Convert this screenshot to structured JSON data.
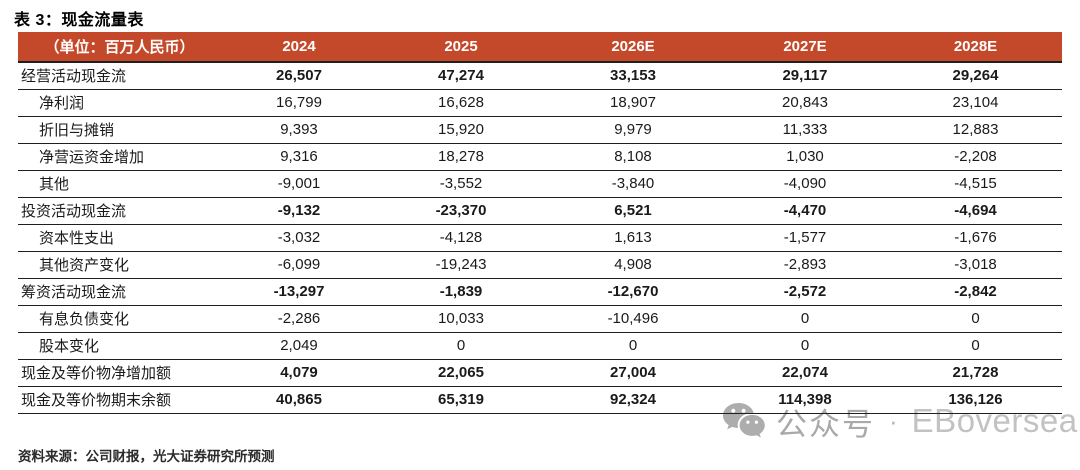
{
  "title": "表 3：现金流量表",
  "source_note": "资料来源：公司财报，光大证券研究所预测",
  "colors": {
    "header_bg": "#c4492b",
    "header_text": "#ffffff",
    "row_line": "#1f1f1f",
    "watermark_gray": "#b5b5b5"
  },
  "watermark": {
    "icon": "wechat-icon",
    "text": "公众号",
    "separator": "·",
    "brand": "EBoversea"
  },
  "table": {
    "unit_label": "（单位：百万人民币）",
    "columns": [
      "2024",
      "2025",
      "2026E",
      "2027E",
      "2028E"
    ],
    "rows": [
      {
        "label": "经营活动现金流",
        "indent": false,
        "bold": true,
        "values": [
          "26,507",
          "47,274",
          "33,153",
          "29,117",
          "29,264"
        ]
      },
      {
        "label": "净利润",
        "indent": true,
        "bold": false,
        "values": [
          "16,799",
          "16,628",
          "18,907",
          "20,843",
          "23,104"
        ]
      },
      {
        "label": "折旧与摊销",
        "indent": true,
        "bold": false,
        "values": [
          "9,393",
          "15,920",
          "9,979",
          "11,333",
          "12,883"
        ]
      },
      {
        "label": "净营运资金增加",
        "indent": true,
        "bold": false,
        "values": [
          "9,316",
          "18,278",
          "8,108",
          "1,030",
          "-2,208"
        ]
      },
      {
        "label": "其他",
        "indent": true,
        "bold": false,
        "values": [
          "-9,001",
          "-3,552",
          "-3,840",
          "-4,090",
          "-4,515"
        ]
      },
      {
        "label": "投资活动现金流",
        "indent": false,
        "bold": true,
        "values": [
          "-9,132",
          "-23,370",
          "6,521",
          "-4,470",
          "-4,694"
        ]
      },
      {
        "label": "资本性支出",
        "indent": true,
        "bold": false,
        "values": [
          "-3,032",
          "-4,128",
          "1,613",
          "-1,577",
          "-1,676"
        ]
      },
      {
        "label": "其他资产变化",
        "indent": true,
        "bold": false,
        "values": [
          "-6,099",
          "-19,243",
          "4,908",
          "-2,893",
          "-3,018"
        ]
      },
      {
        "label": "筹资活动现金流",
        "indent": false,
        "bold": true,
        "values": [
          "-13,297",
          "-1,839",
          "-12,670",
          "-2,572",
          "-2,842"
        ]
      },
      {
        "label": "有息负债变化",
        "indent": true,
        "bold": false,
        "values": [
          "-2,286",
          "10,033",
          "-10,496",
          "0",
          "0"
        ]
      },
      {
        "label": "股本变化",
        "indent": true,
        "bold": false,
        "values": [
          "2,049",
          "0",
          "0",
          "0",
          "0"
        ]
      },
      {
        "label": "现金及等价物净增加额",
        "indent": false,
        "bold": true,
        "values": [
          "4,079",
          "22,065",
          "27,004",
          "22,074",
          "21,728"
        ]
      },
      {
        "label": "现金及等价物期末余额",
        "indent": false,
        "bold": true,
        "values": [
          "40,865",
          "65,319",
          "92,324",
          "114,398",
          "136,126"
        ]
      }
    ]
  }
}
